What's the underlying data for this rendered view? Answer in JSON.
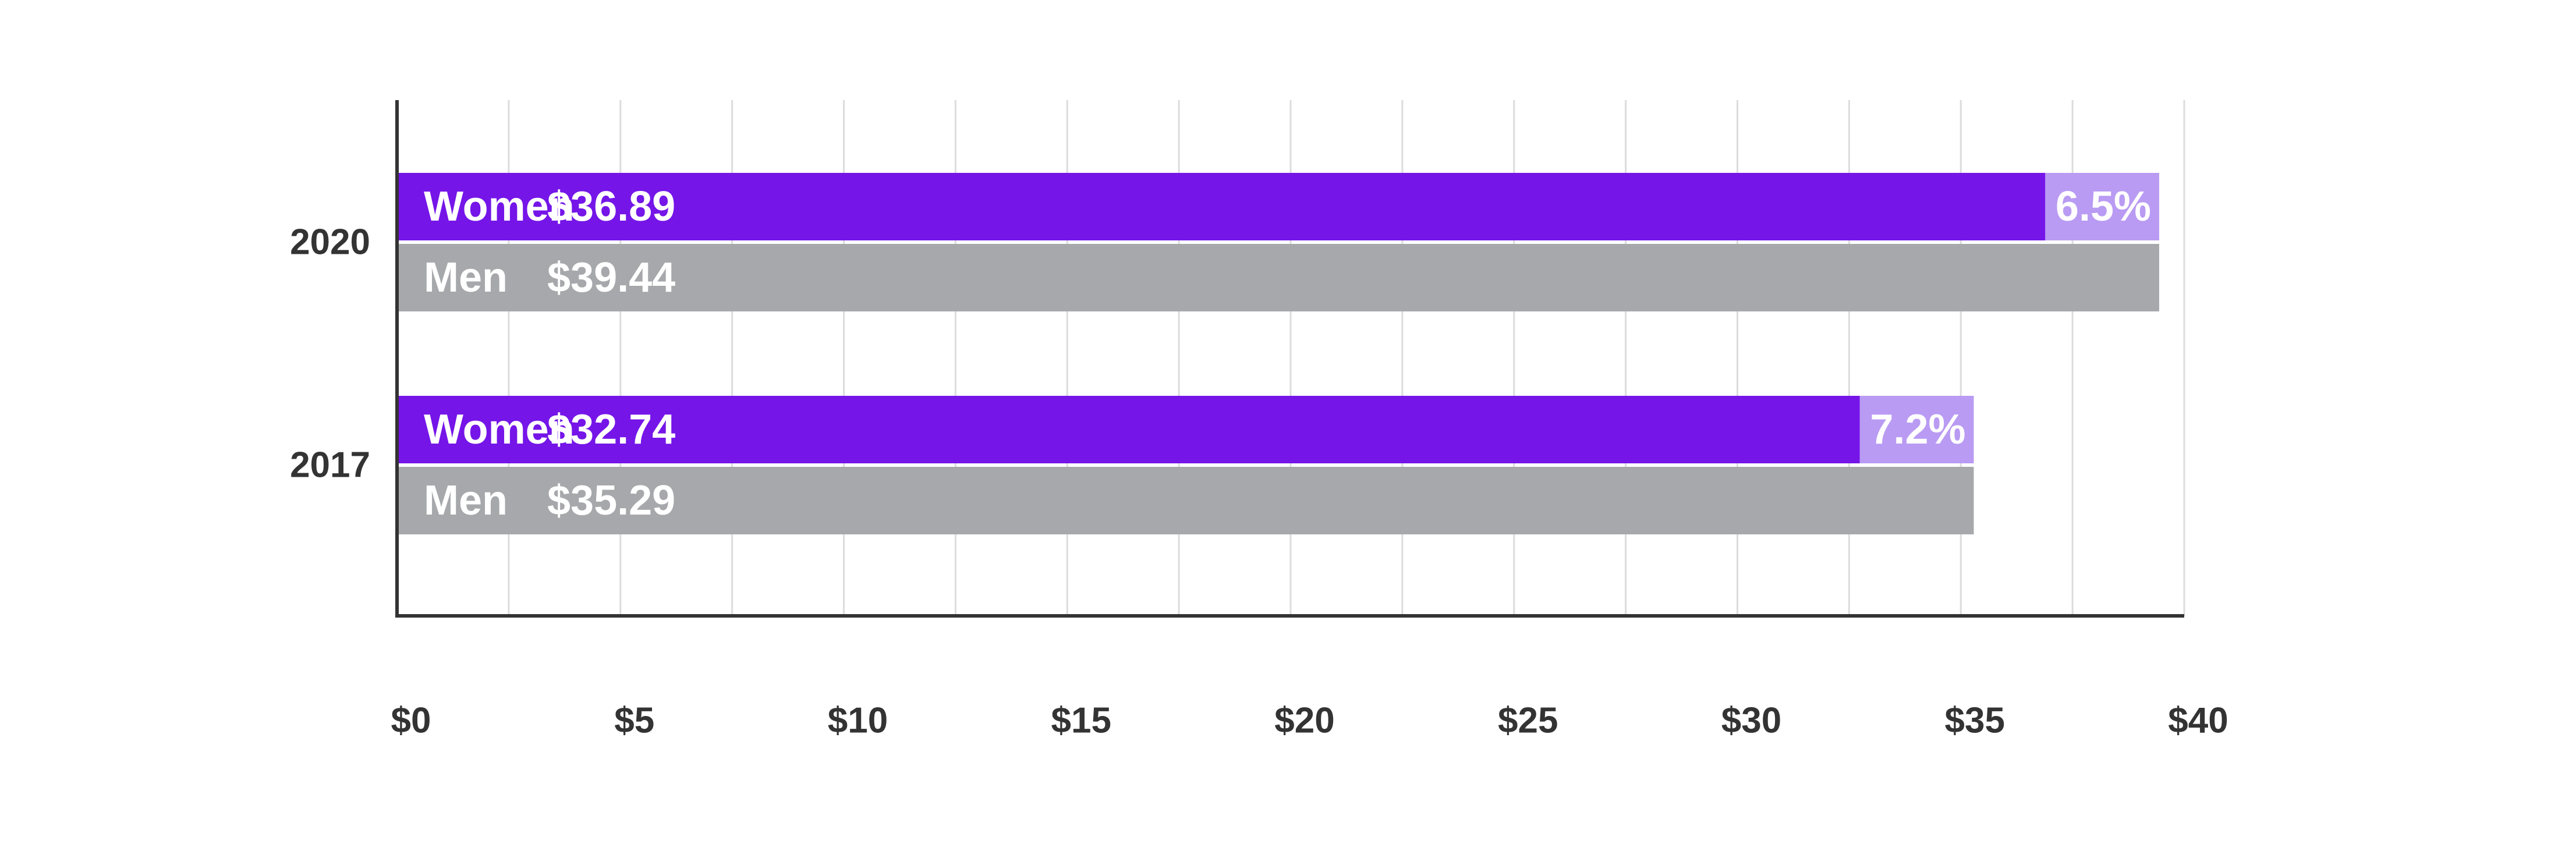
{
  "chart_data": {
    "type": "bar",
    "orientation": "horizontal",
    "categories": [
      "2020",
      "2017"
    ],
    "groups": [
      {
        "year": "2020",
        "bars": [
          {
            "label": "Women",
            "value": 36.89,
            "value_text": "$36.89",
            "gap_value": 39.44,
            "gap_text": "6.5%"
          },
          {
            "label": "Men",
            "value": 39.44,
            "value_text": "$39.44"
          }
        ]
      },
      {
        "year": "2017",
        "bars": [
          {
            "label": "Women",
            "value": 32.74,
            "value_text": "$32.74",
            "gap_value": 35.29,
            "gap_text": "7.2%"
          },
          {
            "label": "Men",
            "value": 35.29,
            "value_text": "$35.29"
          }
        ]
      }
    ],
    "xlim": [
      0,
      40
    ],
    "x_ticks": [
      0,
      5,
      10,
      15,
      20,
      25,
      30,
      35,
      40
    ],
    "x_tick_labels": [
      "$0",
      "$5",
      "$10",
      "$15",
      "$20",
      "$25",
      "$30",
      "$35",
      "$40"
    ],
    "grid": true,
    "title": "",
    "xlabel": "",
    "ylabel": "",
    "colors": {
      "women": "#7515e8",
      "gap": "#b99bf3",
      "men": "#a7a8ab",
      "axis": "#333333",
      "grid": "#dcdcdc"
    }
  }
}
